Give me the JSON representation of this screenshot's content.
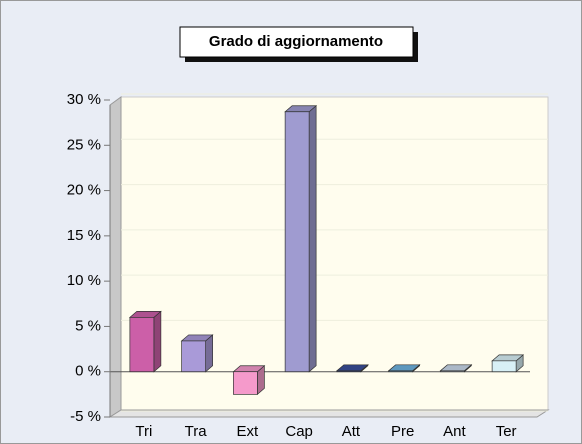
{
  "chart_data": {
    "type": "bar3d",
    "title": "Grado di aggiornamento",
    "categories": [
      "Tri",
      "Tra",
      "Ext",
      "Cap",
      "Att",
      "Pre",
      "Ant",
      "Ter"
    ],
    "values": [
      6.0,
      3.4,
      -2.5,
      28.7,
      0.1,
      0.1,
      0.1,
      1.2
    ],
    "colors": [
      "#cc5fa8",
      "#a99ad8",
      "#f59acb",
      "#9f9bd0",
      "#3a4f9a",
      "#6fb3e0",
      "#c9d8ea",
      "#d8f0f6"
    ],
    "ylim": [
      -5,
      30
    ],
    "yticks": [
      {
        "value": -5,
        "label": "-5 %"
      },
      {
        "value": 0,
        "label": "0 %"
      },
      {
        "value": 5,
        "label": "5 %"
      },
      {
        "value": 10,
        "label": "10 %"
      },
      {
        "value": 15,
        "label": "15 %"
      },
      {
        "value": 20,
        "label": "20 %"
      },
      {
        "value": 25,
        "label": "25 %"
      },
      {
        "value": 30,
        "label": "30 %"
      }
    ],
    "grid": true
  }
}
